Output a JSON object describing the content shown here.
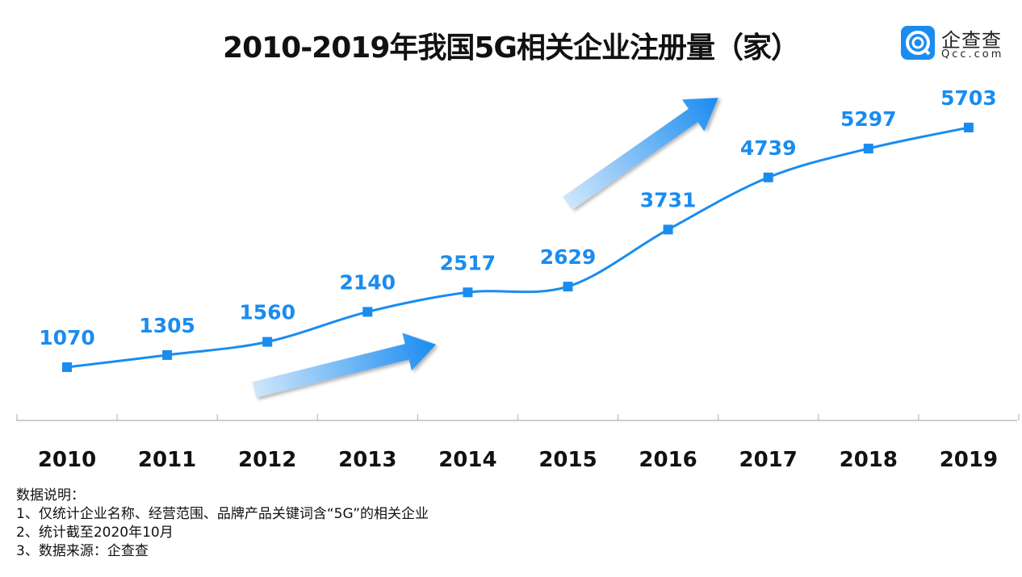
{
  "title": "2010-2019年我国5G相关企业注册量（家）",
  "logo": {
    "cn": "企查查",
    "en": "Qcc.com",
    "color": "#1a8cf0"
  },
  "chart_data": {
    "type": "line",
    "title": "2010-2019年我国5G相关企业注册量（家）",
    "categories": [
      "2010",
      "2011",
      "2012",
      "2013",
      "2014",
      "2015",
      "2016",
      "2017",
      "2018",
      "2019"
    ],
    "series": [
      {
        "values": [
          1070,
          1305,
          1560,
          2140,
          2517,
          2629,
          3731,
          4739,
          5297,
          5703
        ]
      }
    ],
    "data_labels": true,
    "grid": false,
    "line_color": "#1a8cf0",
    "marker": "square",
    "smooth": true
  },
  "notes": {
    "heading": "数据说明：",
    "lines": [
      "1、仅统计企业名称、经营范围、品牌产品关键词含“5G”的相关企业",
      "2、统计截至2020年10月",
      "3、数据来源：企查查"
    ]
  }
}
